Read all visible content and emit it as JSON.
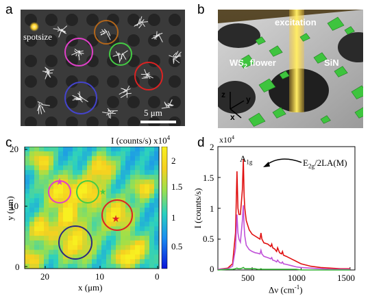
{
  "panels": {
    "a": {
      "letter": "a",
      "spotsize_label": "spotsize",
      "scalebar_label": "5 μm",
      "colors": {
        "brown": "#b3661a",
        "magenta": "#e040c8",
        "green": "#44cc44",
        "red": "#dd2222",
        "blue": "#4444cc",
        "spot": "#ffd22a"
      }
    },
    "b": {
      "letter": "b",
      "excitation_label": "excitation",
      "ws2_label": "WS",
      "ws2_sub": "2",
      "ws2_suffix": " flower",
      "sin_label": "SiN",
      "axis_z": "z",
      "axis_y": "y",
      "axis_x": "x"
    },
    "c": {
      "letter": "c",
      "colorbar_title": "I (counts/s) x10",
      "colorbar_title_exp": "4",
      "colorbar_ticks": [
        "2",
        "1.5",
        "1",
        "0.5"
      ],
      "y_ticks": [
        "20",
        "10",
        "0"
      ],
      "x_ticks": [
        "20",
        "10",
        "0"
      ],
      "xlabel": "x (μm)",
      "ylabel": "y (μm)"
    },
    "d": {
      "letter": "d",
      "ylabel": "I (counts/s)",
      "xlabel_main": "Δν (cm",
      "xlabel_sup": "-1",
      "xlabel_tail": ")",
      "y_exponent_base": "x10",
      "y_exponent": "4",
      "annot_a1g": "A",
      "annot_a1g_sub": "1g",
      "annot_e2g": "E",
      "annot_e2g_sub": "2g",
      "annot_e2g_tail": "/2LA(M)",
      "y_ticks": [
        "2",
        "1.5",
        "1",
        "0.5",
        "0"
      ],
      "x_ticks": [
        "500",
        "1000",
        "1500"
      ]
    }
  },
  "chart_data": {
    "type": "line",
    "x": [
      150,
      250,
      300,
      330,
      345,
      355,
      365,
      380,
      400,
      410,
      418,
      425,
      440,
      470,
      500,
      530,
      560,
      580,
      590,
      600,
      620,
      660,
      690,
      700,
      710,
      730,
      750,
      760,
      780,
      800,
      810,
      820,
      850,
      900,
      950,
      1000,
      1100,
      1200,
      1300,
      1400,
      1500
    ],
    "series": [
      {
        "color": "#e01010",
        "values": [
          0.01,
          0.03,
          0.1,
          0.6,
          1.6,
          1.0,
          0.9,
          0.9,
          1.3,
          1.8,
          1.2,
          1.0,
          0.8,
          0.65,
          0.58,
          0.55,
          0.52,
          0.5,
          0.6,
          0.5,
          0.44,
          0.42,
          0.38,
          0.42,
          0.36,
          0.34,
          0.3,
          0.36,
          0.28,
          0.26,
          0.3,
          0.24,
          0.22,
          0.18,
          0.14,
          0.1,
          0.06,
          0.04,
          0.03,
          0.02,
          0.02
        ]
      },
      {
        "color": "#c050d8",
        "values": [
          0.01,
          0.02,
          0.06,
          0.35,
          0.9,
          0.6,
          0.5,
          0.45,
          0.8,
          1.05,
          0.7,
          0.55,
          0.4,
          0.33,
          0.3,
          0.28,
          0.27,
          0.26,
          0.32,
          0.26,
          0.22,
          0.2,
          0.18,
          0.2,
          0.16,
          0.15,
          0.13,
          0.16,
          0.12,
          0.11,
          0.13,
          0.1,
          0.09,
          0.07,
          0.05,
          0.04,
          0.03,
          0.02,
          0.01,
          0.01,
          0.01
        ]
      },
      {
        "color": "#30b030",
        "values": [
          0.0,
          0.01,
          0.01,
          0.02,
          0.03,
          0.02,
          0.02,
          0.02,
          0.03,
          0.04,
          0.03,
          0.02,
          0.02,
          0.02,
          0.02,
          0.02,
          0.01,
          0.01,
          0.02,
          0.01,
          0.01,
          0.01,
          0.01,
          0.01,
          0.01,
          0.01,
          0.01,
          0.01,
          0.01,
          0.01,
          0.01,
          0.01,
          0.01,
          0.01,
          0.01,
          0.0,
          0.0,
          0.0,
          0.0,
          0.0,
          0.0
        ]
      }
    ],
    "xlim": [
      150,
      1550
    ],
    "ylim": [
      0,
      2
    ]
  }
}
